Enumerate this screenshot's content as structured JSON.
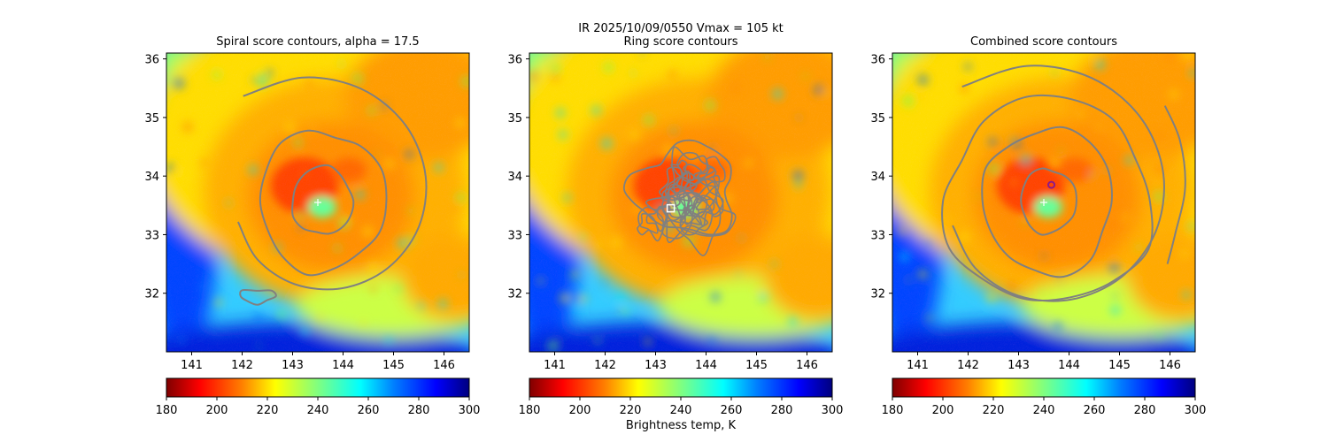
{
  "figure": {
    "suptitle_line1": "IR  2025/10/09/0550    Vmax = 105 kt",
    "colorbar_label": "Brightness temp, K"
  },
  "colors": {
    "contour": "#808080",
    "center_marker": "#ffffff",
    "combined_center_marker": "#8b1a8b",
    "colormap": [
      "#7f0000",
      "#ff0000",
      "#ff8000",
      "#ffff00",
      "#80ff80",
      "#00ffff",
      "#0080ff",
      "#0000ff",
      "#00007f"
    ]
  },
  "chart_data": [
    {
      "type": "heatmap",
      "title": "Spiral score contours, alpha = 17.5",
      "xlim": [
        140.5,
        146.5
      ],
      "ylim": [
        31.0,
        36.1
      ],
      "xticks": [
        141,
        142,
        143,
        144,
        145,
        146
      ],
      "yticks": [
        32,
        33,
        34,
        35,
        36
      ],
      "colorbar": {
        "range": [
          180,
          300
        ],
        "ticks": [
          180,
          200,
          220,
          240,
          260,
          280,
          300
        ],
        "colormap": "jet_r"
      },
      "storm_center": [
        143.5,
        33.55
      ],
      "eye_center": [
        143.5,
        33.65
      ],
      "contour_levels": "spiral",
      "center_marker": {
        "type": "plus",
        "lon": 143.5,
        "lat": 33.55
      }
    },
    {
      "type": "heatmap",
      "title": "Ring score contours",
      "xlim": [
        140.5,
        146.5
      ],
      "ylim": [
        31.0,
        36.1
      ],
      "xticks": [
        141,
        142,
        143,
        144,
        145,
        146
      ],
      "yticks": [
        32,
        33,
        34,
        35,
        36
      ],
      "colorbar": {
        "range": [
          180,
          300
        ],
        "ticks": [
          180,
          200,
          220,
          240,
          260,
          280,
          300
        ],
        "colormap": "jet_r"
      },
      "storm_center": [
        143.5,
        33.55
      ],
      "eye_center": [
        143.5,
        33.65
      ],
      "contour_levels": "ring",
      "center_marker": {
        "type": "square",
        "lon": 143.3,
        "lat": 33.45
      }
    },
    {
      "type": "heatmap",
      "title": "Combined score contours",
      "xlim": [
        140.5,
        146.5
      ],
      "ylim": [
        31.0,
        36.1
      ],
      "xticks": [
        141,
        142,
        143,
        144,
        145,
        146
      ],
      "yticks": [
        32,
        33,
        34,
        35,
        36
      ],
      "colorbar": {
        "range": [
          180,
          300
        ],
        "ticks": [
          180,
          200,
          220,
          240,
          260,
          280,
          300
        ],
        "colormap": "jet_r"
      },
      "storm_center": [
        143.5,
        33.55
      ],
      "eye_center": [
        143.5,
        33.65
      ],
      "contour_levels": "combined",
      "center_marker": {
        "type": "plus",
        "lon": 143.5,
        "lat": 33.55
      },
      "combined_marker": {
        "type": "circle",
        "lon": 143.65,
        "lat": 33.85
      }
    }
  ]
}
